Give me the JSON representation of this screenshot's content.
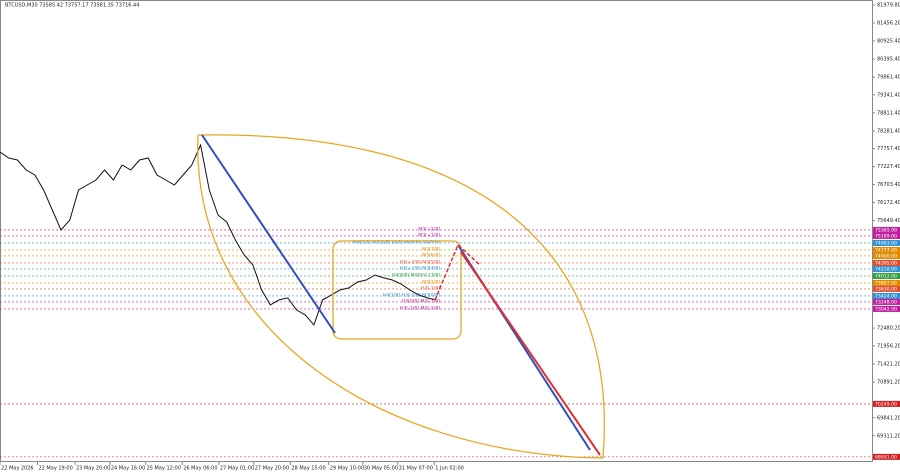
{
  "chart_data": {
    "type": "line",
    "title": "BTCUSD,M30  73585.42 73757.17 73581.35 73716.44",
    "x": [
      0,
      1,
      2,
      3,
      4,
      5,
      6,
      7,
      8,
      9,
      10,
      11,
      12,
      13,
      14,
      15,
      16,
      17,
      18,
      19,
      20,
      21,
      22,
      23,
      24,
      25,
      26,
      27,
      28,
      29,
      30,
      31,
      32,
      33,
      34,
      35,
      36,
      37,
      38,
      39,
      40,
      41,
      42,
      43,
      44,
      45,
      46,
      47,
      48,
      49,
      50
    ],
    "series": [
      {
        "name": "BTCUSD",
        "color": "#111111",
        "values": [
          77658,
          77482,
          77423,
          77129,
          76982,
          76541,
          75953,
          75365,
          75659,
          76541,
          76688,
          76835,
          77129,
          76835,
          77276,
          77129,
          77423,
          77482,
          76982,
          76835,
          76688,
          76982,
          77276,
          77864,
          76541,
          75806,
          75600,
          75071,
          74630,
          74336,
          73601,
          73160,
          73307,
          73366,
          73013,
          72866,
          72572,
          73307,
          73454,
          73601,
          73660,
          73836,
          73895,
          74042,
          73954,
          73895,
          73777,
          73601,
          73454,
          73366,
          73307
        ]
      }
    ],
    "xlim": [
      0,
      100
    ],
    "xticks": [
      {
        "value": 0,
        "label": "22 May 2026"
      },
      {
        "value": 4.3,
        "label": "22 May 19:00"
      },
      {
        "value": 8.6,
        "label": "23 May 20:00"
      },
      {
        "value": 12.6,
        "label": "24 May 16:00"
      },
      {
        "value": 16.7,
        "label": "25 May 12:00"
      },
      {
        "value": 20.9,
        "label": "26 May 06:00"
      },
      {
        "value": 25.1,
        "label": "27 May 01:00"
      },
      {
        "value": 29.1,
        "label": "27 May 20:00"
      },
      {
        "value": 33.3,
        "label": "28 May 15:00"
      },
      {
        "value": 37.7,
        "label": "29 May 10:00"
      },
      {
        "value": 41.6,
        "label": "30 May 05:00"
      },
      {
        "value": 45.6,
        "label": "31 May 07:00"
      },
      {
        "value": 49.8,
        "label": "1 Jun 02:00"
      }
    ],
    "ylim": [
      68540,
      82130
    ],
    "yticks": [
      {
        "value": 81979.8,
        "label": "81979.80"
      },
      {
        "value": 81456.2,
        "label": "81456.20"
      },
      {
        "value": 80925.4,
        "label": "80925.40"
      },
      {
        "value": 80395.4,
        "label": "80395.40"
      },
      {
        "value": 79861.4,
        "label": "79861.40"
      },
      {
        "value": 79341.4,
        "label": "79341.40"
      },
      {
        "value": 78811.4,
        "label": "78811.40"
      },
      {
        "value": 78281.4,
        "label": "78281.40"
      },
      {
        "value": 77757.4,
        "label": "77757.40"
      },
      {
        "value": 77227.4,
        "label": "77227.40"
      },
      {
        "value": 76703.4,
        "label": "76703.40"
      },
      {
        "value": 76172.4,
        "label": "76172.40"
      },
      {
        "value": 75649.4,
        "label": "75649.40"
      },
      {
        "value": 72480.2,
        "label": "72480.20"
      },
      {
        "value": 71956.2,
        "label": "71956.20"
      },
      {
        "value": 71421.2,
        "label": "71421.20"
      },
      {
        "value": 70891.2,
        "label": "70891.20"
      },
      {
        "value": 69841.2,
        "label": "69841.20"
      },
      {
        "value": 69311.2,
        "label": "69311.20"
      }
    ],
    "levels": [
      {
        "value": 75365,
        "label": "75365.00",
        "color": "#c020a0",
        "text": "M3[+2/8]"
      },
      {
        "value": 75189,
        "label": "75189.00",
        "color": "#c020a0",
        "text": "M3[+1/8]"
      },
      {
        "value": 74983,
        "label": "74983.00",
        "color": "#3090d0",
        "text": "MN[3/8] M3[8/8] [4/8] MAP(M) MAP(H)"
      },
      {
        "value": 74777,
        "label": "74777.00",
        "color": "#e08a00",
        "text": "M3[7/8]"
      },
      {
        "value": 74600,
        "label": "74600.00",
        "color": "#e08a00",
        "text": "M3[6/8]"
      },
      {
        "value": 74395,
        "label": "74395.00",
        "color": "#e05030",
        "text": "H3[+2/8] M3[5/8]"
      },
      {
        "value": 74218,
        "label": "74218.00",
        "color": "#3090d0",
        "text": "H3[+1/8] M3[4/8]"
      },
      {
        "value": 74012,
        "label": "74012.00",
        "color": "#30a040",
        "text": "H4[8/8] MAP(H) [3/8]"
      },
      {
        "value": 73807,
        "label": "73807.00",
        "color": "#e08a00",
        "text": "M3[2/8]"
      },
      {
        "value": 73630,
        "label": "73630.00",
        "color": "#e05030",
        "text": "H3[-1/8]"
      },
      {
        "value": 73424,
        "label": "73424.00",
        "color": "#3090d0",
        "text": "H4[2/8] H3[-2/8] M3[0/8]"
      },
      {
        "value": 73248,
        "label": "73248.00",
        "color": "#c020a0",
        "text": "H3[0/8] M3[-1/8]"
      },
      {
        "value": 73042,
        "label": "73042.00",
        "color": "#c020a0",
        "text": "H3[-1/8] M3[-2/8]"
      },
      {
        "value": 70249,
        "label": "70249.00",
        "color": "#d02020"
      },
      {
        "value": 68691,
        "label": "68691.00",
        "color": "#d02020"
      }
    ]
  }
}
